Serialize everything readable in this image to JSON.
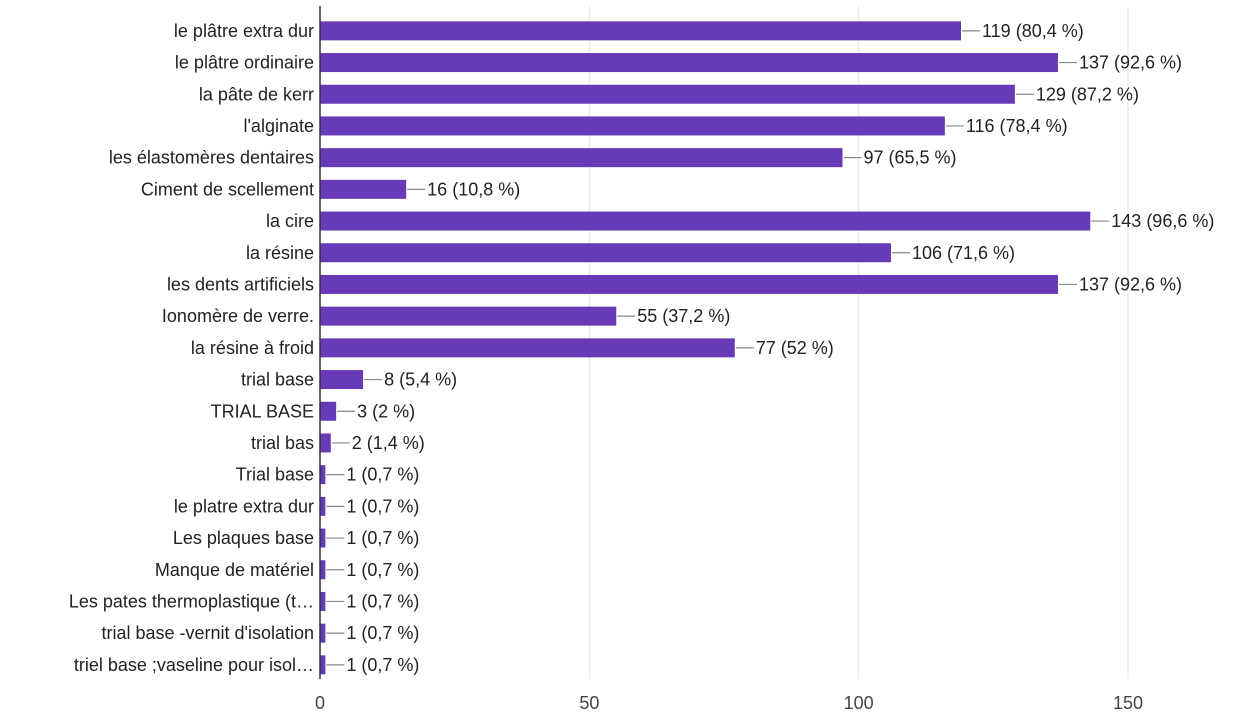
{
  "chart_data": {
    "type": "bar",
    "orientation": "horizontal",
    "categories": [
      "le plâtre extra dur",
      "le plâtre ordinaire",
      "la pâte de kerr",
      "l'alginate",
      "les élastomères dentaires",
      "Ciment de scellement",
      "la cire",
      "la résine",
      "les dents artificiels",
      "Ionomère de verre.",
      "la résine à froid",
      "trial base",
      "TRIAL BASE",
      "trial bas",
      "Trial base",
      "le platre extra dur",
      "Les plaques base",
      "Manque de matériel",
      "Les pates thermoplastique (t…",
      "trial base -vernit d'isolation",
      "triel base ;vaseline pour isol…"
    ],
    "values": [
      119,
      137,
      129,
      116,
      97,
      16,
      143,
      106,
      137,
      55,
      77,
      8,
      3,
      2,
      1,
      1,
      1,
      1,
      1,
      1,
      1
    ],
    "data_labels": [
      "119 (80,4 %)",
      "137 (92,6 %)",
      "129 (87,2 %)",
      "116 (78,4 %)",
      "97 (65,5 %)",
      "16 (10,8 %)",
      "143 (96,6 %)",
      "106 (71,6 %)",
      "137 (92,6 %)",
      "55 (37,2 %)",
      "77 (52 %)",
      "8 (5,4 %)",
      "3 (2 %)",
      "2 (1,4 %)",
      "1 (0,7 %)",
      "1 (0,7 %)",
      "1 (0,7 %)",
      "1 (0,7 %)",
      "1 (0,7 %)",
      "1 (0,7 %)",
      "1 (0,7 %)"
    ],
    "xticks": [
      0,
      50,
      100,
      150
    ],
    "xlim": [
      0,
      150
    ],
    "title": "",
    "xlabel": "",
    "ylabel": "",
    "grid": true,
    "legend": "none",
    "bar_color": "#673ab7"
  }
}
